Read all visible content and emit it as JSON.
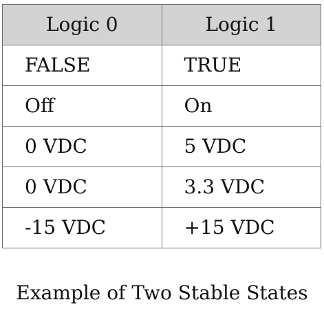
{
  "table": {
    "headers": [
      "Logic 0",
      "Logic 1"
    ],
    "rows": [
      [
        "FALSE",
        "TRUE"
      ],
      [
        "Off",
        "On"
      ],
      [
        "0 VDC",
        "5 VDC"
      ],
      [
        "0 VDC",
        "3.3 VDC"
      ],
      [
        "-15 VDC",
        "+15 VDC"
      ]
    ]
  },
  "caption": "Example of Two Stable States"
}
